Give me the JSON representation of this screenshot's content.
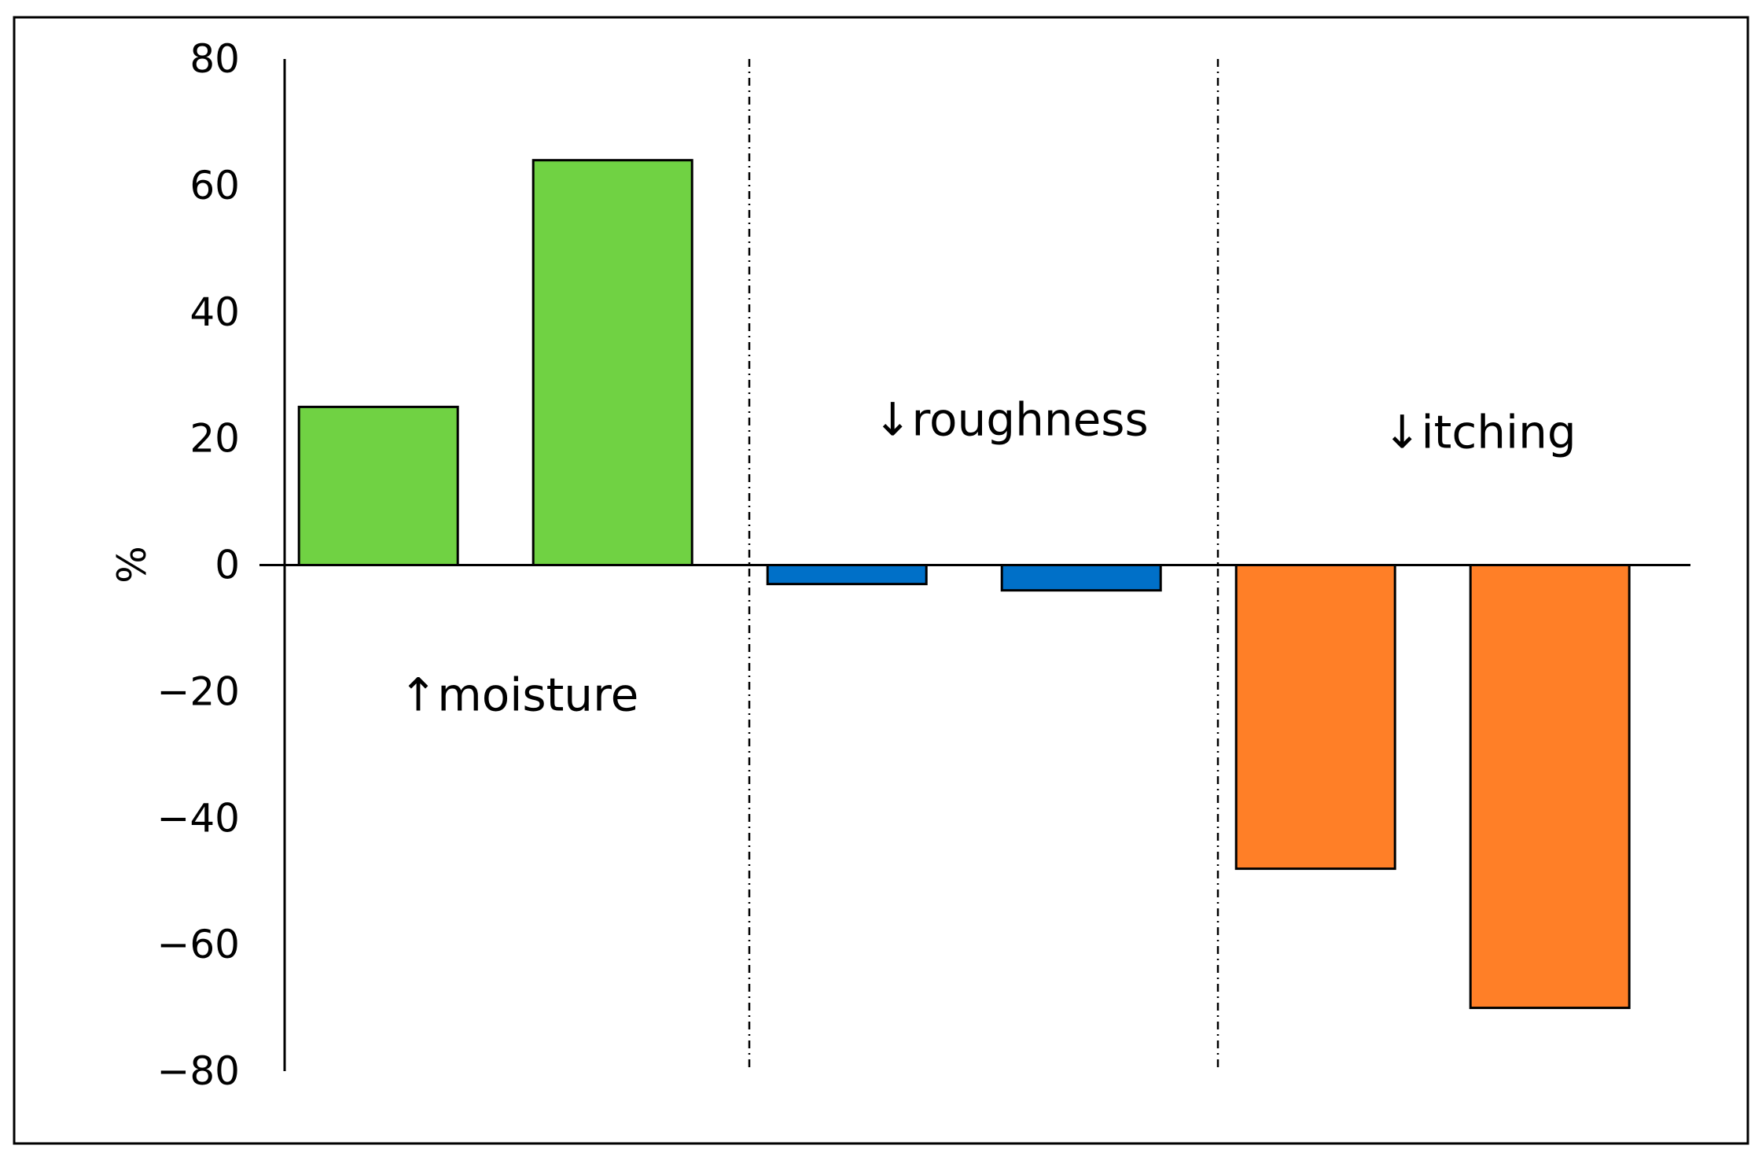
{
  "chart_data": {
    "type": "bar",
    "ylabel": "%",
    "ylim": [
      -80,
      80
    ],
    "yticks": [
      80,
      60,
      40,
      20,
      0,
      -20,
      -40,
      -60,
      -80
    ],
    "ytick_labels": [
      "80",
      "60",
      "40",
      "20",
      "0",
      "−20",
      "−40",
      "−60",
      "−80"
    ],
    "grid": false,
    "legend": "none",
    "groups": [
      {
        "name": "↑moisture",
        "color": "#70d243",
        "values": [
          25,
          64
        ]
      },
      {
        "name": "↓roughness",
        "color": "#0070c8",
        "values": [
          -3,
          -4
        ]
      },
      {
        "name": "↓itching",
        "color": "#ff7f27",
        "values": [
          -48,
          -70
        ]
      }
    ]
  }
}
